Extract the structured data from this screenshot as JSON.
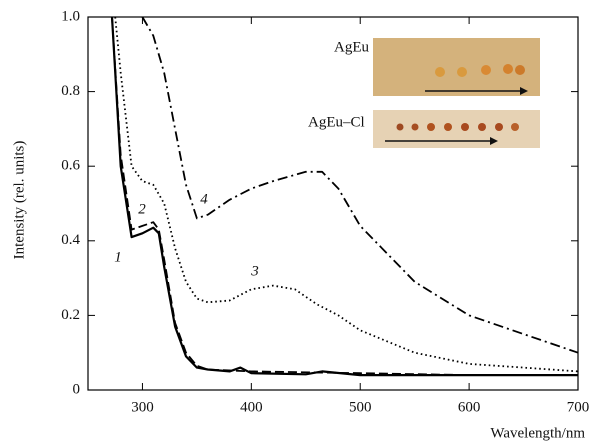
{
  "chart_data": {
    "type": "line",
    "xlabel": "Wavelength/nm",
    "ylabel": "Intensity (rel. units)",
    "xlim": [
      250,
      700
    ],
    "xticks": [
      300,
      400,
      500,
      600,
      700
    ],
    "ylim": [
      0,
      1
    ],
    "yticks": [
      0,
      0.2,
      0.4,
      0.6,
      0.8,
      {
        "value": 1,
        "label": "1.0"
      }
    ],
    "series": [
      {
        "name": "1",
        "color": "#000000",
        "linestyle": "solid",
        "x": [
          272,
          280,
          290,
          300,
          310,
          315,
          320,
          330,
          340,
          350,
          360,
          380,
          390,
          400,
          450,
          465,
          500,
          600,
          700
        ],
        "values": [
          1.0,
          0.6,
          0.41,
          0.42,
          0.435,
          0.42,
          0.33,
          0.17,
          0.09,
          0.06,
          0.055,
          0.05,
          0.06,
          0.045,
          0.042,
          0.05,
          0.04,
          0.04,
          0.04
        ]
      },
      {
        "name": "2",
        "color": "#000000",
        "linestyle": "dashed",
        "x": [
          272,
          280,
          290,
          300,
          310,
          315,
          320,
          330,
          340,
          350,
          360,
          400,
          500,
          600,
          700
        ],
        "values": [
          1.0,
          0.63,
          0.43,
          0.44,
          0.45,
          0.43,
          0.35,
          0.18,
          0.1,
          0.065,
          0.055,
          0.05,
          0.045,
          0.04,
          0.04
        ]
      },
      {
        "name": "3",
        "color": "#000000",
        "linestyle": "dotted",
        "x": [
          275,
          280,
          290,
          300,
          310,
          320,
          330,
          340,
          350,
          360,
          380,
          400,
          420,
          440,
          460,
          480,
          500,
          550,
          600,
          650,
          700
        ],
        "values": [
          1.0,
          0.85,
          0.6,
          0.56,
          0.55,
          0.5,
          0.38,
          0.29,
          0.245,
          0.235,
          0.24,
          0.27,
          0.28,
          0.27,
          0.23,
          0.2,
          0.16,
          0.1,
          0.07,
          0.06,
          0.05
        ]
      },
      {
        "name": "4",
        "color": "#000000",
        "linestyle": "dashdot",
        "x": [
          300,
          310,
          320,
          330,
          340,
          350,
          360,
          380,
          400,
          420,
          450,
          465,
          480,
          500,
          550,
          600,
          650,
          700
        ],
        "values": [
          1.0,
          0.95,
          0.85,
          0.7,
          0.55,
          0.46,
          0.47,
          0.51,
          0.54,
          0.56,
          0.585,
          0.585,
          0.54,
          0.44,
          0.29,
          0.2,
          0.15,
          0.1
        ]
      }
    ],
    "inset_labels": [
      "AgEu",
      "AgEu–Cl"
    ]
  }
}
